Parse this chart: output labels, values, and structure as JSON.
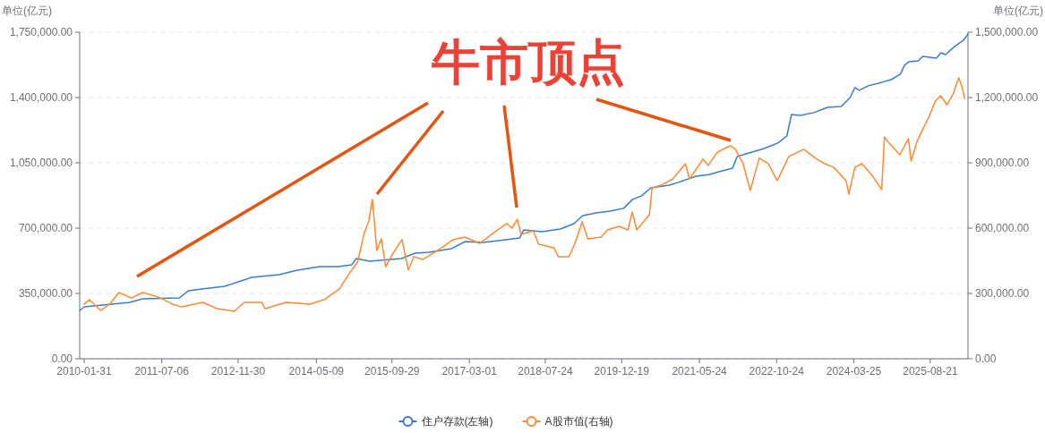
{
  "chart_data": {
    "type": "line",
    "annotations": [
      {
        "text": "牛市顶点",
        "x": "2021-12-20",
        "y": 1141000
      }
    ],
    "ylabel": "单位(亿元)",
    "y2label": "单位(亿元)",
    "xlim": [
      "2010-01-01",
      "2026-05-01"
    ],
    "xticks": [
      "2010-01-31",
      "2011-07-06",
      "2012-11-30",
      "2014-05-09",
      "2015-09-29",
      "2017-03-01",
      "2018-07-24",
      "2019-12-19",
      "2021-05-24",
      "2022-10-24",
      "2024-03-25",
      "2025-08-21"
    ],
    "ylim": [
      0,
      1750000
    ],
    "yticks": [
      {
        "value": 0,
        "label": "0.00"
      },
      {
        "value": 350000,
        "label": "350,000.00"
      },
      {
        "value": 700000,
        "label": "700,000.00"
      },
      {
        "value": 1050000,
        "label": "1,050,000.00"
      },
      {
        "value": 1400000,
        "label": "1,400,000.00"
      },
      {
        "value": 1750000,
        "label": "1,750,000.00"
      }
    ],
    "y2lim": [
      0,
      1500000
    ],
    "y2ticks": [
      {
        "value": 0,
        "label": "0.00"
      },
      {
        "value": 300000,
        "label": "300,000.00"
      },
      {
        "value": 600000,
        "label": "600,000.00"
      },
      {
        "value": 900000,
        "label": "900,000.00"
      },
      {
        "value": 1200000,
        "label": "1,200,000.00"
      },
      {
        "value": 1500000,
        "label": "1,500,000.00"
      }
    ],
    "grid": "y",
    "legend": "bottom",
    "marker": "none",
    "line_style": "solid",
    "series": [
      {
        "name": "住户存款(左轴)",
        "color": "#3a7bd5",
        "x": [
          "2010-01",
          "2010-02",
          "2010-12",
          "2011-03",
          "2011-11",
          "2012-01",
          "2012-04",
          "2012-09",
          "2013-03",
          "2013-09",
          "2014-01",
          "2014-06",
          "2014-10",
          "2015-01",
          "2015-02",
          "2015-05",
          "2015-12",
          "2016-03",
          "2016-06",
          "2016-11",
          "2017-02",
          "2017-06",
          "2017-11",
          "2018-02",
          "2018-03",
          "2018-07",
          "2018-11",
          "2019-02",
          "2019-04",
          "2019-07",
          "2019-10",
          "2020-01",
          "2020-03",
          "2020-05",
          "2020-07",
          "2020-11",
          "2021-01",
          "2021-05",
          "2021-08",
          "2021-10",
          "2022-01",
          "2022-02",
          "2022-04",
          "2022-08",
          "2022-10",
          "2022-11",
          "2023-01",
          "2023-02",
          "2023-04",
          "2023-07",
          "2023-10",
          "2024-01",
          "2024-03",
          "2024-04",
          "2024-05",
          "2024-07",
          "2024-10",
          "2024-12",
          "2025-02",
          "2025-03",
          "2025-04",
          "2025-06",
          "2025-07",
          "2025-10",
          "2025-11",
          "2025-12",
          "2026-02",
          "2026-04",
          "2026-05"
        ],
        "values": [
          259000,
          278000,
          302000,
          321000,
          326000,
          364000,
          374000,
          388000,
          436000,
          451000,
          475000,
          494000,
          494000,
          503000,
          537000,
          523000,
          537000,
          566000,
          571000,
          590000,
          628000,
          623000,
          638000,
          647000,
          690000,
          681000,
          695000,
          724000,
          767000,
          782000,
          791000,
          806000,
          854000,
          873000,
          916000,
          930000,
          945000,
          978000,
          988000,
          1002000,
          1021000,
          1084000,
          1098000,
          1127000,
          1146000,
          1156000,
          1194000,
          1309000,
          1304000,
          1319000,
          1347000,
          1352000,
          1400000,
          1453000,
          1439000,
          1463000,
          1482000,
          1496000,
          1525000,
          1573000,
          1592000,
          1597000,
          1621000,
          1611000,
          1640000,
          1630000,
          1674000,
          1707000,
          1740000
        ]
      },
      {
        "name": "A股市值(右轴)",
        "color": "#ff8a33",
        "axis": "y2",
        "x": [
          "2010-01-31",
          "2010-03-06",
          "2010-05-23",
          "2010-07-22",
          "2010-09-21",
          "2010-12-14",
          "2011-02-28",
          "2011-06-11",
          "2011-09-16",
          "2011-11-15",
          "2012-04-07",
          "2012-07-11",
          "2012-11-04",
          "2013-01-09",
          "2013-05-07",
          "2013-05-30",
          "2013-10-17",
          "2014-03-26",
          "2014-06-30",
          "2014-10-11",
          "2014-12-10",
          "2015-02-09",
          "2015-03-27",
          "2015-04-26",
          "2015-05-20",
          "2015-06-19",
          "2015-07-19",
          "2015-08-18",
          "2015-10-06",
          "2015-12-05",
          "2016-01-16",
          "2016-02-22",
          "2016-04-21",
          "2016-08-19",
          "2016-11-12",
          "2017-01-29",
          "2017-05-09",
          "2017-08-14",
          "2017-11-07",
          "2017-12-12",
          "2018-01-17",
          "2018-02-11",
          "2018-05-04",
          "2018-06-09",
          "2018-09-20",
          "2018-10-19",
          "2018-12-30",
          "2019-02-06",
          "2019-03-29",
          "2019-05-05",
          "2019-08-03",
          "2019-09-14",
          "2019-12-01",
          "2020-01-30",
          "2020-02-28",
          "2020-03-29",
          "2020-06-22",
          "2020-07-10",
          "2020-09-09",
          "2020-11-26",
          "2021-02-19",
          "2021-03-18",
          "2021-06-17",
          "2021-07-22",
          "2021-09-21",
          "2021-11-20",
          "2021-12-20",
          "2022-01-20",
          "2022-03-13",
          "2022-04-30",
          "2022-06-29",
          "2022-08-29",
          "2022-10-28",
          "2023-01-14",
          "2023-04-25",
          "2023-07-12",
          "2023-09-11",
          "2023-11-10",
          "2024-02-03",
          "2024-02-21",
          "2024-04-02",
          "2024-05-19",
          "2024-07-30",
          "2024-09-29",
          "2024-10-17",
          "2024-11-16",
          "2025-01-28",
          "2025-03-27",
          "2025-04-14",
          "2025-05-26",
          "2025-08-13",
          "2025-09-24",
          "2025-10-29",
          "2025-12-11",
          "2026-01-22",
          "2026-02-28",
          "2026-03-21",
          "2026-04-09"
        ],
        "values": [
          251000,
          271000,
          222000,
          251000,
          304000,
          279000,
          304000,
          284000,
          251000,
          238000,
          259000,
          230000,
          218000,
          259000,
          259000,
          230000,
          259000,
          251000,
          271000,
          321000,
          386000,
          444000,
          580000,
          633000,
          732000,
          497000,
          551000,
          423000,
          485000,
          547000,
          407000,
          469000,
          456000,
          506000,
          547000,
          559000,
          530000,
          580000,
          621000,
          600000,
          641000,
          571000,
          588000,
          526000,
          510000,
          469000,
          469000,
          526000,
          629000,
          551000,
          559000,
          592000,
          608000,
          592000,
          674000,
          592000,
          662000,
          785000,
          797000,
          826000,
          896000,
          826000,
          917000,
          888000,
          949000,
          970000,
          978000,
          962000,
          896000,
          773000,
          921000,
          896000,
          818000,
          929000,
          962000,
          921000,
          896000,
          880000,
          818000,
          756000,
          880000,
          896000,
          838000,
          777000,
          1019000,
          991000,
          937000,
          1011000,
          908000,
          1003000,
          1114000,
          1184000,
          1208000,
          1167000,
          1217000,
          1291000,
          1249000,
          1196000
        ]
      }
    ]
  }
}
